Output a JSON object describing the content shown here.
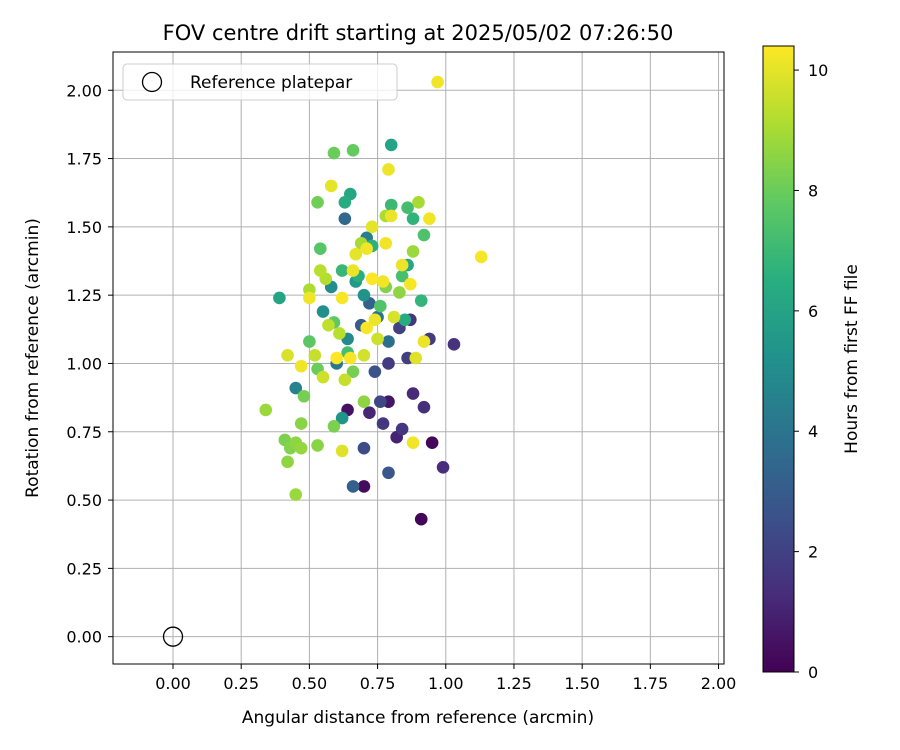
{
  "chart_data": {
    "type": "scatter",
    "title": "FOV centre drift starting at 2025/05/02 07:26:50",
    "xlabel": "Angular distance from reference (arcmin)",
    "ylabel": "Rotation from reference (arcmin)",
    "xlim": [
      -0.22,
      2.02
    ],
    "ylim": [
      -0.1,
      2.14
    ],
    "xticks": [
      "0.00",
      "0.25",
      "0.50",
      "0.75",
      "1.00",
      "1.25",
      "1.50",
      "1.75",
      "2.00"
    ],
    "yticks": [
      "0.00",
      "0.25",
      "0.50",
      "0.75",
      "1.00",
      "1.25",
      "1.50",
      "1.75",
      "2.00"
    ],
    "grid": true,
    "legend": {
      "position": "top-left",
      "entries": [
        "Reference platepar"
      ]
    },
    "reference_point": {
      "x": 0.0,
      "y": 0.0
    },
    "colorbar": {
      "label": "Hours from first FF file",
      "range": [
        0,
        10.4
      ],
      "ticks": [
        "0",
        "2",
        "4",
        "6",
        "8",
        "10"
      ],
      "colormap": "viridis"
    },
    "points": [
      [
        0.91,
        0.43,
        0.1
      ],
      [
        0.95,
        0.71,
        0.2
      ],
      [
        0.7,
        0.55,
        0.3
      ],
      [
        0.64,
        0.83,
        0.5
      ],
      [
        0.79,
        0.86,
        0.6
      ],
      [
        0.82,
        0.73,
        1.0
      ],
      [
        0.72,
        0.82,
        1.1
      ],
      [
        0.88,
        0.89,
        1.2
      ],
      [
        0.92,
        0.84,
        1.4
      ],
      [
        0.99,
        0.62,
        1.3
      ],
      [
        1.03,
        1.07,
        1.5
      ],
      [
        0.84,
        0.76,
        1.6
      ],
      [
        0.77,
        0.78,
        1.7
      ],
      [
        0.94,
        1.09,
        1.8
      ],
      [
        0.87,
        1.16,
        1.6
      ],
      [
        0.86,
        1.02,
        1.9
      ],
      [
        0.83,
        1.13,
        2.0
      ],
      [
        0.76,
        0.86,
        2.2
      ],
      [
        0.79,
        1.0,
        1.8
      ],
      [
        0.7,
        0.69,
        2.4
      ],
      [
        0.79,
        0.6,
        2.8
      ],
      [
        0.66,
        0.55,
        3.2
      ],
      [
        0.74,
        0.97,
        2.6
      ],
      [
        0.69,
        1.14,
        3.0
      ],
      [
        0.72,
        1.22,
        3.3
      ],
      [
        0.63,
        1.53,
        3.5
      ],
      [
        0.79,
        1.08,
        3.8
      ],
      [
        0.75,
        1.17,
        4.0
      ],
      [
        0.6,
        1.0,
        4.2
      ],
      [
        0.45,
        0.91,
        4.6
      ],
      [
        0.71,
        1.46,
        4.4
      ],
      [
        0.64,
        1.09,
        4.9
      ],
      [
        0.58,
        1.28,
        5.0
      ],
      [
        0.7,
        1.25,
        5.3
      ],
      [
        0.62,
        0.8,
        5.4
      ],
      [
        0.55,
        1.19,
        5.1
      ],
      [
        0.67,
        1.3,
        5.6
      ],
      [
        0.8,
        1.8,
        6.0
      ],
      [
        0.65,
        1.62,
        6.2
      ],
      [
        0.63,
        1.59,
        6.4
      ],
      [
        0.39,
        1.24,
        6.0
      ],
      [
        0.85,
        1.16,
        6.4
      ],
      [
        0.86,
        1.36,
        6.2
      ],
      [
        0.88,
        1.53,
        6.7
      ],
      [
        0.73,
        1.43,
        6.6
      ],
      [
        0.91,
        1.23,
        6.8
      ],
      [
        0.68,
        1.32,
        6.5
      ],
      [
        0.62,
        1.34,
        6.9
      ],
      [
        0.8,
        1.58,
        7.0
      ],
      [
        0.86,
        1.57,
        7.2
      ],
      [
        0.92,
        1.47,
        7.4
      ],
      [
        0.84,
        1.32,
        7.3
      ],
      [
        0.76,
        1.21,
        7.5
      ],
      [
        0.64,
        1.04,
        7.2
      ],
      [
        0.54,
        1.42,
        7.6
      ],
      [
        0.5,
        1.08,
        7.7
      ],
      [
        0.59,
        1.15,
        7.8
      ],
      [
        0.66,
        1.78,
        7.9
      ],
      [
        0.59,
        1.77,
        8.0
      ],
      [
        0.53,
        1.59,
        8.1
      ],
      [
        0.53,
        0.98,
        8.0
      ],
      [
        0.48,
        0.88,
        8.2
      ],
      [
        0.41,
        0.72,
        8.3
      ],
      [
        0.47,
        0.78,
        8.5
      ],
      [
        0.43,
        0.69,
        8.4
      ],
      [
        0.45,
        0.71,
        8.6
      ],
      [
        0.47,
        0.69,
        8.7
      ],
      [
        0.42,
        0.64,
        8.6
      ],
      [
        0.45,
        0.52,
        8.8
      ],
      [
        0.34,
        0.83,
        8.8
      ],
      [
        0.53,
        0.7,
        8.5
      ],
      [
        0.59,
        0.77,
        8.3
      ],
      [
        0.66,
        0.97,
        8.2
      ],
      [
        0.7,
        0.86,
        8.6
      ],
      [
        0.78,
        1.28,
        8.4
      ],
      [
        0.83,
        1.26,
        8.6
      ],
      [
        0.88,
        1.41,
        8.8
      ],
      [
        0.9,
        1.59,
        9.0
      ],
      [
        0.78,
        1.54,
        9.1
      ],
      [
        0.69,
        1.44,
        9.0
      ],
      [
        0.56,
        1.31,
        9.2
      ],
      [
        0.54,
        1.34,
        9.3
      ],
      [
        0.5,
        1.27,
        9.1
      ],
      [
        0.57,
        1.14,
        9.4
      ],
      [
        0.61,
        1.11,
        9.3
      ],
      [
        0.52,
        1.03,
        9.5
      ],
      [
        0.55,
        0.95,
        9.6
      ],
      [
        0.63,
        0.94,
        9.5
      ],
      [
        0.7,
        1.03,
        9.7
      ],
      [
        0.75,
        1.09,
        9.6
      ],
      [
        0.81,
        1.17,
        9.8
      ],
      [
        0.89,
        1.02,
        9.9
      ],
      [
        0.42,
        1.03,
        9.8
      ],
      [
        0.62,
        0.68,
        9.9
      ],
      [
        0.58,
        1.65,
        10.0
      ],
      [
        0.79,
        1.71,
        10.1
      ],
      [
        0.97,
        2.03,
        10.2
      ],
      [
        1.13,
        1.39,
        10.3
      ],
      [
        0.94,
        1.53,
        10.2
      ],
      [
        0.8,
        1.54,
        10.1
      ],
      [
        0.73,
        1.5,
        10.0
      ],
      [
        0.71,
        1.42,
        10.2
      ],
      [
        0.66,
        1.34,
        10.1
      ],
      [
        0.62,
        1.24,
        10.3
      ],
      [
        0.5,
        1.24,
        10.2
      ],
      [
        0.6,
        1.02,
        10.4
      ],
      [
        0.65,
        1.02,
        10.3
      ],
      [
        0.47,
        0.99,
        10.2
      ],
      [
        0.74,
        1.16,
        10.1
      ],
      [
        0.71,
        1.13,
        10.3
      ],
      [
        0.88,
        0.71,
        10.2
      ],
      [
        0.92,
        1.08,
        10.1
      ],
      [
        0.73,
        1.31,
        10.4
      ],
      [
        0.78,
        1.44,
        10.2
      ],
      [
        0.87,
        1.29,
        10.3
      ],
      [
        0.84,
        1.36,
        10.1
      ],
      [
        0.67,
        1.4,
        10.0
      ],
      [
        0.77,
        1.3,
        10.2
      ]
    ]
  }
}
